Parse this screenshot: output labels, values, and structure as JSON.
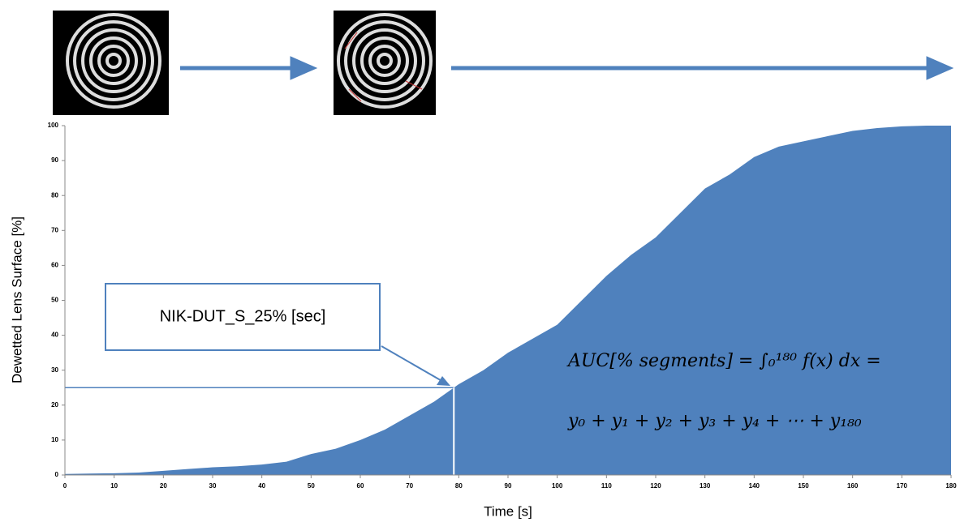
{
  "chart_data": {
    "type": "area",
    "x_label": "Time [s]",
    "y_label": "Dewetted Lens Surface [%]",
    "annotation": "NIK-DUT_S_25% [sec]",
    "formula": [
      "AUC[% segments] = ∫₀¹⁸⁰ f(x) dx =",
      "y₀ + y₁ + y₂ + y₃ + y₄ + ⋯ + y₁₈₀"
    ],
    "marker": {
      "x": 79,
      "y": 25
    },
    "color": "#4f81bd",
    "x": [
      0,
      5,
      10,
      15,
      20,
      25,
      30,
      35,
      40,
      45,
      50,
      55,
      60,
      65,
      70,
      75,
      80,
      85,
      90,
      95,
      100,
      105,
      110,
      115,
      120,
      125,
      130,
      135,
      140,
      145,
      150,
      155,
      160,
      165,
      170,
      175,
      180
    ],
    "values": [
      0.3,
      0.4,
      0.5,
      0.7,
      1.2,
      1.7,
      2.2,
      2.5,
      3,
      3.8,
      6,
      7.5,
      10,
      13,
      17,
      21,
      26,
      30,
      35,
      39,
      43,
      50,
      57,
      63,
      68,
      75,
      82,
      86,
      91,
      94,
      95.5,
      97,
      98.5,
      99.3,
      99.8,
      100,
      100
    ],
    "xlim": [
      0,
      180
    ],
    "xticks": [
      0,
      10,
      20,
      30,
      40,
      50,
      60,
      70,
      80,
      90,
      100,
      110,
      120,
      130,
      140,
      150,
      160,
      170,
      180
    ],
    "ylim": [
      0,
      100
    ],
    "yticks": [
      0,
      10,
      20,
      30,
      40,
      50,
      60,
      70,
      80,
      90,
      100
    ]
  }
}
